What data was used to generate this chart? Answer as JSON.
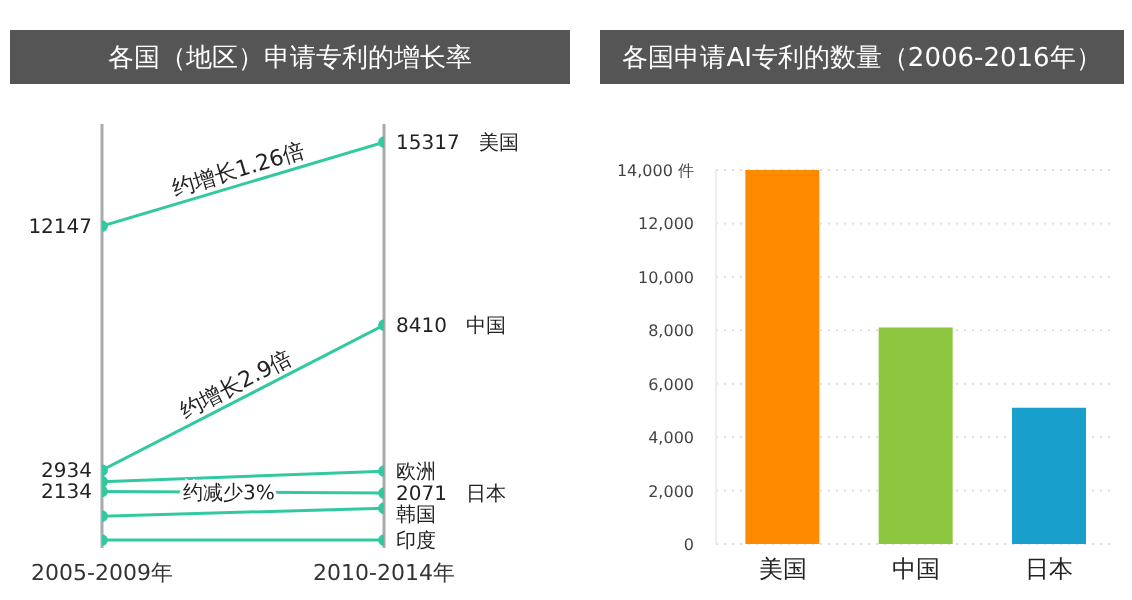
{
  "chart_data": [
    {
      "type": "line",
      "title": "各国（地区）申请专利的增长率",
      "categories": [
        "2005-2009年",
        "2010-2014年"
      ],
      "ylim": [
        0,
        16000
      ],
      "tick_labels": "x",
      "grid": "x",
      "marker": "circle",
      "series": [
        {
          "name": "美国",
          "color": "#33c9a0",
          "values": [
            12147,
            15317
          ],
          "value_labels": [
            "12147",
            "15317"
          ]
        },
        {
          "name": "中国",
          "color": "#33c9a0",
          "values": [
            2934,
            8410
          ],
          "value_labels": [
            "2934",
            "8410"
          ]
        },
        {
          "name": "欧洲",
          "color": "#33c9a0",
          "values": [
            2500,
            2900
          ],
          "value_labels": [
            null,
            null
          ]
        },
        {
          "name": "日本",
          "color": "#33c9a0",
          "values": [
            2134,
            2071
          ],
          "value_labels": [
            "2134",
            "2071"
          ]
        },
        {
          "name": "韩国",
          "color": "#33c9a0",
          "values": [
            1200,
            1500
          ],
          "value_labels": [
            null,
            null
          ]
        },
        {
          "name": "印度",
          "color": "#33c9a0",
          "values": [
            300,
            300
          ],
          "value_labels": [
            null,
            null
          ]
        }
      ],
      "annotations": [
        "约增长1.26倍",
        "约增长2.9倍",
        "约减少3%"
      ]
    },
    {
      "type": "bar",
      "title": "各国申请AI专利的数量（2006-2016年）",
      "categories": [
        "美国",
        "中国",
        "日本"
      ],
      "values": [
        14000,
        8100,
        5100
      ],
      "colors": [
        "#ff8a00",
        "#8dc63f",
        "#189fcc"
      ],
      "ylim": [
        0,
        14000
      ],
      "yticks": [
        0,
        {
          "value": 2000,
          "label": "2,000"
        },
        {
          "value": 4000,
          "label": "4,000"
        },
        {
          "value": 6000,
          "label": "6,000"
        },
        {
          "value": 8000,
          "label": "8,000"
        },
        {
          "value": 10000,
          "label": "10,000"
        },
        {
          "value": 12000,
          "label": "12,000"
        },
        {
          "value": 14000,
          "label": "14,000 件"
        }
      ],
      "grid": "y"
    }
  ]
}
